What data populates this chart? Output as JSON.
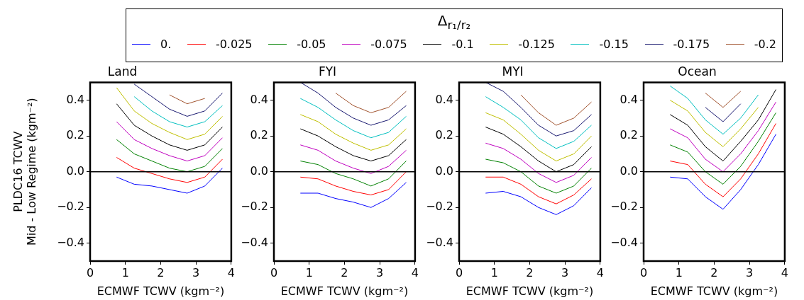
{
  "chart_data": [
    {
      "type": "line",
      "title": "Land",
      "xlabel": "ECMWF TCWV (kgm⁻²)",
      "ylabel": "PLDC16 TCWV\nMid - Low Regime (kgm⁻²)",
      "legend_title": "Δ$_{r₁/r₂}$",
      "legend": "top",
      "x": [
        0.75,
        1.25,
        1.75,
        2.25,
        2.75,
        3.25,
        3.75
      ],
      "xlim": [
        0,
        4
      ],
      "xticks": [
        0,
        1,
        2,
        3,
        4
      ],
      "ylim": [
        -0.5,
        0.5
      ],
      "yticks": [
        {
          "value": -0.4,
          "label": "−0.4"
        },
        {
          "value": -0.2,
          "label": "−0.2"
        },
        {
          "value": 0,
          "label": "0.0"
        },
        {
          "value": 0.2,
          "label": "0.2"
        },
        {
          "value": 0.4,
          "label": "0.4"
        }
      ],
      "ref_lines": [
        {
          "axis": "y",
          "value": 0,
          "color": "#000000"
        }
      ],
      "series": [
        {
          "name": "0.",
          "color": "#0000ff",
          "values": [
            -0.03,
            -0.07,
            -0.08,
            -0.1,
            -0.12,
            -0.08,
            0.02
          ]
        },
        {
          "name": "-0.025",
          "color": "#ff0000",
          "values": [
            0.08,
            0.02,
            -0.01,
            -0.04,
            -0.06,
            -0.03,
            0.07
          ]
        },
        {
          "name": "-0.05",
          "color": "#008000",
          "values": [
            0.18,
            0.1,
            0.06,
            0.02,
            0.0,
            0.03,
            0.13
          ]
        },
        {
          "name": "-0.075",
          "color": "#bf00bf",
          "values": [
            0.28,
            0.18,
            0.13,
            0.09,
            0.06,
            0.09,
            0.19
          ]
        },
        {
          "name": "-0.1",
          "color": "#000000",
          "values": [
            0.38,
            0.26,
            0.2,
            0.15,
            0.12,
            0.15,
            0.25
          ]
        },
        {
          "name": "-0.125",
          "color": "#bfbf00",
          "values": [
            0.47,
            0.34,
            0.27,
            0.22,
            0.18,
            0.21,
            0.31
          ]
        },
        {
          "name": "-0.15",
          "color": "#00bfbf",
          "values": [
            null,
            0.42,
            0.34,
            0.28,
            0.25,
            0.28,
            0.37
          ]
        },
        {
          "name": "-0.175",
          "color": "#191970",
          "values": [
            null,
            0.49,
            0.42,
            0.35,
            0.31,
            0.34,
            0.44
          ]
        },
        {
          "name": "-0.2",
          "color": "#a0522d",
          "values": [
            null,
            null,
            null,
            0.43,
            0.38,
            0.41,
            null
          ]
        }
      ]
    },
    {
      "type": "line",
      "title": "FYI",
      "xlabel": "ECMWF TCWV (kgm⁻²)",
      "x": [
        0.75,
        1.25,
        1.75,
        2.25,
        2.75,
        3.25,
        3.75
      ],
      "xlim": [
        0,
        4
      ],
      "xticks": [
        0,
        1,
        2,
        3,
        4
      ],
      "ylim": [
        -0.5,
        0.5
      ],
      "yticks": [
        {
          "value": -0.4,
          "label": "−0.4"
        },
        {
          "value": -0.2,
          "label": "−0.2"
        },
        {
          "value": 0,
          "label": "0.0"
        },
        {
          "value": 0.2,
          "label": "0.2"
        },
        {
          "value": 0.4,
          "label": "0.4"
        }
      ],
      "ref_lines": [
        {
          "axis": "y",
          "value": 0,
          "color": "#000000"
        }
      ],
      "series": [
        {
          "name": "0.",
          "color": "#0000ff",
          "values": [
            -0.12,
            -0.12,
            -0.15,
            -0.17,
            -0.2,
            -0.15,
            -0.06
          ]
        },
        {
          "name": "-0.025",
          "color": "#ff0000",
          "values": [
            -0.03,
            -0.04,
            -0.08,
            -0.11,
            -0.13,
            -0.1,
            0.0
          ]
        },
        {
          "name": "-0.05",
          "color": "#008000",
          "values": [
            0.06,
            0.04,
            -0.01,
            -0.04,
            -0.08,
            -0.04,
            0.06
          ]
        },
        {
          "name": "-0.075",
          "color": "#bf00bf",
          "values": [
            0.15,
            0.12,
            0.06,
            0.02,
            -0.01,
            0.03,
            0.12
          ]
        },
        {
          "name": "-0.1",
          "color": "#000000",
          "values": [
            0.24,
            0.2,
            0.14,
            0.09,
            0.06,
            0.09,
            0.18
          ]
        },
        {
          "name": "-0.125",
          "color": "#bfbf00",
          "values": [
            0.32,
            0.28,
            0.21,
            0.16,
            0.12,
            0.15,
            0.24
          ]
        },
        {
          "name": "-0.15",
          "color": "#00bfbf",
          "values": [
            0.41,
            0.36,
            0.29,
            0.23,
            0.19,
            0.22,
            0.31
          ]
        },
        {
          "name": "-0.175",
          "color": "#191970",
          "values": [
            0.5,
            0.44,
            0.36,
            0.3,
            0.26,
            0.29,
            0.37
          ]
        },
        {
          "name": "-0.2",
          "color": "#a0522d",
          "values": [
            null,
            null,
            0.44,
            0.37,
            0.33,
            0.36,
            0.45
          ]
        }
      ]
    },
    {
      "type": "line",
      "title": "MYI",
      "xlabel": "ECMWF TCWV (kgm⁻²)",
      "x": [
        0.75,
        1.25,
        1.75,
        2.25,
        2.75,
        3.25,
        3.75
      ],
      "xlim": [
        0,
        4
      ],
      "xticks": [
        0,
        1,
        2,
        3,
        4
      ],
      "ylim": [
        -0.5,
        0.5
      ],
      "yticks": [
        {
          "value": -0.4,
          "label": "−0.4"
        },
        {
          "value": -0.2,
          "label": "−0.2"
        },
        {
          "value": 0,
          "label": "0.0"
        },
        {
          "value": 0.2,
          "label": "0.2"
        },
        {
          "value": 0.4,
          "label": "0.4"
        }
      ],
      "ref_lines": [
        {
          "axis": "y",
          "value": 0,
          "color": "#000000"
        }
      ],
      "series": [
        {
          "name": "0.",
          "color": "#0000ff",
          "values": [
            -0.12,
            -0.11,
            -0.14,
            -0.2,
            -0.24,
            -0.19,
            -0.09
          ]
        },
        {
          "name": "-0.025",
          "color": "#ff0000",
          "values": [
            -0.03,
            -0.03,
            -0.07,
            -0.14,
            -0.18,
            -0.13,
            -0.04
          ]
        },
        {
          "name": "-0.05",
          "color": "#008000",
          "values": [
            0.07,
            0.05,
            0.0,
            -0.08,
            -0.12,
            -0.08,
            0.02
          ]
        },
        {
          "name": "-0.075",
          "color": "#bf00bf",
          "values": [
            0.16,
            0.13,
            0.07,
            -0.01,
            -0.06,
            -0.02,
            0.08
          ]
        },
        {
          "name": "-0.1",
          "color": "#000000",
          "values": [
            0.25,
            0.21,
            0.14,
            0.06,
            0.0,
            0.04,
            0.14
          ]
        },
        {
          "name": "-0.125",
          "color": "#bfbf00",
          "values": [
            0.33,
            0.29,
            0.21,
            0.12,
            0.06,
            0.1,
            0.2
          ]
        },
        {
          "name": "-0.15",
          "color": "#00bfbf",
          "values": [
            0.42,
            0.36,
            0.29,
            0.19,
            0.13,
            0.17,
            0.26
          ]
        },
        {
          "name": "-0.175",
          "color": "#191970",
          "values": [
            0.5,
            0.45,
            0.36,
            0.26,
            0.2,
            0.23,
            0.32
          ]
        },
        {
          "name": "-0.2",
          "color": "#a0522d",
          "values": [
            null,
            null,
            0.43,
            0.33,
            0.26,
            0.3,
            0.39
          ]
        }
      ]
    },
    {
      "type": "line",
      "title": "Ocean",
      "xlabel": "ECMWF TCWV (kgm⁻²)",
      "x": [
        0.75,
        1.25,
        1.75,
        2.25,
        2.75,
        3.25,
        3.75
      ],
      "xlim": [
        0,
        4
      ],
      "xticks": [
        0,
        1,
        2,
        3,
        4
      ],
      "ylim": [
        -0.5,
        0.5
      ],
      "yticks": [
        {
          "value": -0.4,
          "label": "−0.4"
        },
        {
          "value": -0.2,
          "label": "−0.2"
        },
        {
          "value": 0,
          "label": "0.0"
        },
        {
          "value": 0.2,
          "label": "0.2"
        },
        {
          "value": 0.4,
          "label": "0.4"
        }
      ],
      "ref_lines": [
        {
          "axis": "y",
          "value": 0,
          "color": "#000000"
        }
      ],
      "series": [
        {
          "name": "0.",
          "color": "#0000ff",
          "values": [
            -0.03,
            -0.04,
            -0.14,
            -0.21,
            -0.1,
            0.04,
            0.21
          ]
        },
        {
          "name": "-0.025",
          "color": "#ff0000",
          "values": [
            0.06,
            0.04,
            -0.07,
            -0.14,
            -0.04,
            0.1,
            0.27
          ]
        },
        {
          "name": "-0.05",
          "color": "#008000",
          "values": [
            0.15,
            0.11,
            0.0,
            -0.07,
            0.03,
            0.17,
            0.33
          ]
        },
        {
          "name": "-0.075",
          "color": "#bf00bf",
          "values": [
            0.24,
            0.19,
            0.07,
            0.0,
            0.1,
            0.23,
            0.39
          ]
        },
        {
          "name": "-0.1",
          "color": "#000000",
          "values": [
            0.32,
            0.26,
            0.14,
            0.06,
            0.17,
            0.29,
            0.46
          ]
        },
        {
          "name": "-0.125",
          "color": "#bfbf00",
          "values": [
            0.4,
            0.34,
            0.22,
            0.14,
            0.24,
            0.36,
            null
          ]
        },
        {
          "name": "-0.15",
          "color": "#00bfbf",
          "values": [
            0.48,
            0.41,
            0.29,
            0.21,
            0.3,
            0.43,
            null
          ]
        },
        {
          "name": "-0.175",
          "color": "#191970",
          "values": [
            null,
            null,
            0.36,
            0.28,
            0.38,
            null,
            null
          ]
        },
        {
          "name": "-0.2",
          "color": "#a0522d",
          "values": [
            null,
            null,
            0.44,
            0.36,
            0.45,
            null,
            null
          ]
        }
      ]
    }
  ]
}
